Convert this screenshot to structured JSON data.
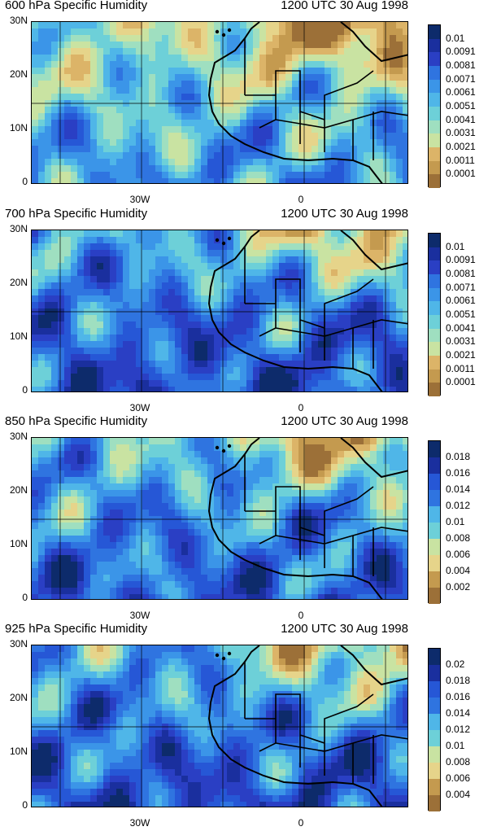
{
  "panels": [
    {
      "title_left": "600 hPa Specific Humidity",
      "title_right": "1200 UTC 30 Aug 1998",
      "ylabels": [
        "30N",
        "20N",
        "10N",
        "0"
      ],
      "xlabels": [
        "30W",
        "0"
      ],
      "colorbar_labels": [
        "0.01",
        "0.0091",
        "0.0081",
        "0.0071",
        "0.0061",
        "0.0051",
        "0.0041",
        "0.0031",
        "0.0021",
        "0.0011",
        "0.0001"
      ],
      "field_level": 0.45
    },
    {
      "title_left": "700 hPa Specific Humidity",
      "title_right": "1200 UTC 30 Aug 1998",
      "ylabels": [
        "30N",
        "20N",
        "10N",
        "0"
      ],
      "xlabels": [
        "30W",
        "0"
      ],
      "colorbar_labels": [
        "0.01",
        "0.0091",
        "0.0081",
        "0.0071",
        "0.0061",
        "0.0051",
        "0.0041",
        "0.0031",
        "0.0021",
        "0.0011",
        "0.0001"
      ],
      "field_level": 0.65
    },
    {
      "title_left": "850 hPa Specific Humidity",
      "title_right": "1200 UTC 30 Aug 1998",
      "ylabels": [
        "30N",
        "20N",
        "10N",
        "0"
      ],
      "xlabels": [
        "30W",
        "0"
      ],
      "colorbar_labels": [
        "0.018",
        "0.016",
        "0.014",
        "0.012",
        "0.01",
        "0.008",
        "0.006",
        "0.004",
        "0.002"
      ],
      "field_level": 0.6
    },
    {
      "title_left": "925 hPa Specific Humidity",
      "title_right": "1200 UTC 30 Aug 1998",
      "ylabels": [
        "30N",
        "20N",
        "10N",
        "0"
      ],
      "xlabels": [
        "30W",
        "0"
      ],
      "colorbar_labels": [
        "0.02",
        "0.018",
        "0.016",
        "0.014",
        "0.012",
        "0.01",
        "0.008",
        "0.006",
        "0.004"
      ],
      "field_level": 0.65
    }
  ],
  "palette": [
    "#0d2b6b",
    "#1a2f9e",
    "#2a3fc4",
    "#2657d6",
    "#2f74e0",
    "#3b95e8",
    "#4fb6e8",
    "#6dd0d8",
    "#9fdfc0",
    "#c9e3a2",
    "#e6d48a",
    "#dcb468",
    "#c49a4f",
    "#9c7038"
  ]
}
